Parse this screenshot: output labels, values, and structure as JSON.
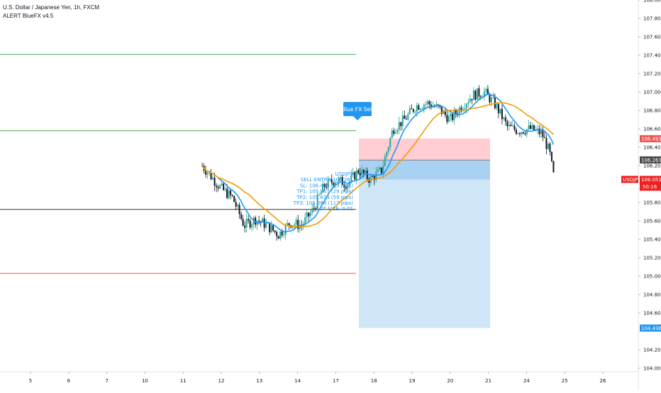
{
  "header": {
    "symbol_title": "U.S. Dollar / Japanese Yen, 1h, FXCM",
    "indicator_title": "ALERT BlueFX v4.5"
  },
  "signal": {
    "label": "Blue FX Sell",
    "info_lines": [
      "USDJPY",
      "SELL ENTRY: 106.261",
      "SL: 106.495 (23 pips)",
      "TP1: 105.967 (29 pips)",
      "TP2: 105.674 (59 pips)",
      "TP3: 105.088 (117 pips)",
      "LOT SIZE: 0.01"
    ]
  },
  "price_axis": {
    "ticks": [
      "108.000",
      "107.800",
      "107.600",
      "107.400",
      "107.200",
      "107.000",
      "106.800",
      "106.600",
      "106.400",
      "106.200",
      "105.800",
      "105.600",
      "105.400",
      "105.200",
      "105.000",
      "104.800",
      "104.600",
      "104.200",
      "104.000"
    ],
    "badges": [
      {
        "text": "106.493",
        "value": 106.493,
        "bg": "#ef5350",
        "fg": "#ffffff"
      },
      {
        "text": "106.263",
        "value": 106.263,
        "bg": "#4a4a4a",
        "fg": "#ffffff"
      },
      {
        "text": "104.436",
        "value": 104.436,
        "bg": "#2196f3",
        "fg": "#ffffff"
      }
    ],
    "last_price": {
      "symbol": "USDJPY",
      "price": "106.051",
      "countdown": "50:16",
      "bg": "#ef2020",
      "fg": "#ffffff"
    }
  },
  "time_axis": {
    "ticks": [
      "5",
      "6",
      "7",
      "10",
      "11",
      "12",
      "13",
      "14",
      "17",
      "18",
      "19",
      "20",
      "21",
      "24",
      "25",
      "26"
    ]
  },
  "chart_data": {
    "type": "candlestick",
    "title": "U.S. Dollar / Japanese Yen, 1h, FXCM",
    "ylim": [
      104.0,
      108.0
    ],
    "x_ticks": [
      "5",
      "6",
      "7",
      "10",
      "11",
      "12",
      "13",
      "14",
      "17",
      "18",
      "19",
      "20",
      "21",
      "24",
      "25",
      "26"
    ],
    "price_path": [
      {
        "d": 4.5,
        "p": 106.2
      },
      {
        "d": 5.0,
        "p": 105.95
      },
      {
        "d": 5.3,
        "p": 105.85
      },
      {
        "d": 5.6,
        "p": 105.55
      },
      {
        "d": 5.9,
        "p": 105.62
      },
      {
        "d": 6.2,
        "p": 105.55
      },
      {
        "d": 6.5,
        "p": 105.45
      },
      {
        "d": 6.8,
        "p": 105.58
      },
      {
        "d": 7.1,
        "p": 105.55
      },
      {
        "d": 7.4,
        "p": 105.72
      },
      {
        "d": 7.7,
        "p": 105.98
      },
      {
        "d": 8.0,
        "p": 106.05
      },
      {
        "d": 8.3,
        "p": 106.0
      },
      {
        "d": 8.6,
        "p": 106.15
      },
      {
        "d": 8.9,
        "p": 106.05
      },
      {
        "d": 9.2,
        "p": 106.15
      },
      {
        "d": 9.5,
        "p": 106.6
      },
      {
        "d": 9.8,
        "p": 106.7
      },
      {
        "d": 10.1,
        "p": 106.85
      },
      {
        "d": 10.4,
        "p": 106.88
      },
      {
        "d": 10.7,
        "p": 106.82
      },
      {
        "d": 11.0,
        "p": 106.7
      },
      {
        "d": 11.3,
        "p": 106.85
      },
      {
        "d": 11.6,
        "p": 106.97
      },
      {
        "d": 11.9,
        "p": 107.0
      },
      {
        "d": 12.2,
        "p": 106.85
      },
      {
        "d": 12.5,
        "p": 106.62
      },
      {
        "d": 12.8,
        "p": 106.58
      },
      {
        "d": 13.1,
        "p": 106.6
      },
      {
        "d": 13.4,
        "p": 106.55
      },
      {
        "d": 13.6,
        "p": 106.35
      },
      {
        "d": 13.7,
        "p": 106.1
      },
      {
        "d": 13.75,
        "p": 106.051
      }
    ],
    "horizontal_levels": [
      {
        "value": 107.41,
        "color": "#4caf50"
      },
      {
        "value": 106.58,
        "color": "#4caf50"
      },
      {
        "value": 105.725,
        "color": "#333333"
      },
      {
        "value": 105.03,
        "color": "#ef5350"
      }
    ],
    "short_position": {
      "entry": 106.261,
      "stop": 106.495,
      "target": 104.436
    }
  },
  "colors": {
    "up_candle": "#26a69a",
    "down_candle": "#131722",
    "ma_fast": "#2196f3",
    "ma_slow": "#f59b00",
    "stop_zone": "#ffcdd2",
    "profit_zone": "#cfe6f7",
    "profit_zone_dark": "#a9d2f2",
    "signal_label": "#2196f3"
  }
}
